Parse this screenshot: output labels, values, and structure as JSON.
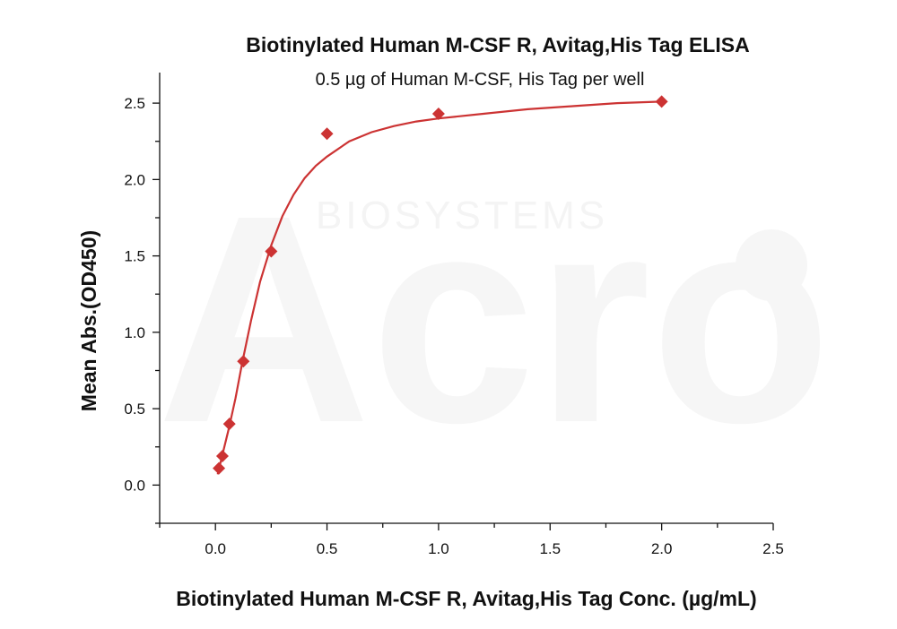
{
  "chart_data": {
    "type": "scatter",
    "title": "Biotinylated Human M-CSF R, Avitag,His Tag ELISA",
    "subtitle": "0.5 µg of Human M-CSF, His Tag per well",
    "xlabel": "Biotinylated Human M-CSF R, Avitag,His Tag Conc. (µg/mL)",
    "ylabel": "Mean Abs.(OD450)",
    "xlim": [
      -0.25,
      2.5
    ],
    "ylim": [
      -0.25,
      2.7
    ],
    "xticks": [
      "0.0",
      "0.5",
      "1.0",
      "1.5",
      "2.0",
      "2.5"
    ],
    "yticks": [
      "0.0",
      "0.5",
      "1.0",
      "1.5",
      "2.0",
      "2.5"
    ],
    "grid": false,
    "marker": "diamond",
    "color": "#cc3333",
    "points": [
      {
        "x": 0.0156,
        "y": 0.11
      },
      {
        "x": 0.0313,
        "y": 0.19
      },
      {
        "x": 0.0625,
        "y": 0.4
      },
      {
        "x": 0.125,
        "y": 0.81
      },
      {
        "x": 0.25,
        "y": 1.53
      },
      {
        "x": 0.5,
        "y": 2.3
      },
      {
        "x": 1.0,
        "y": 2.43
      },
      {
        "x": 2.0,
        "y": 2.51
      }
    ],
    "fit_curve": [
      {
        "x": 0.01,
        "y": 0.07
      },
      {
        "x": 0.03,
        "y": 0.19
      },
      {
        "x": 0.06,
        "y": 0.37
      },
      {
        "x": 0.09,
        "y": 0.57
      },
      {
        "x": 0.12,
        "y": 0.8
      },
      {
        "x": 0.16,
        "y": 1.08
      },
      {
        "x": 0.2,
        "y": 1.33
      },
      {
        "x": 0.25,
        "y": 1.57
      },
      {
        "x": 0.3,
        "y": 1.76
      },
      {
        "x": 0.35,
        "y": 1.9
      },
      {
        "x": 0.4,
        "y": 2.01
      },
      {
        "x": 0.45,
        "y": 2.09
      },
      {
        "x": 0.5,
        "y": 2.15
      },
      {
        "x": 0.6,
        "y": 2.25
      },
      {
        "x": 0.7,
        "y": 2.31
      },
      {
        "x": 0.8,
        "y": 2.35
      },
      {
        "x": 0.9,
        "y": 2.38
      },
      {
        "x": 1.0,
        "y": 2.4
      },
      {
        "x": 1.2,
        "y": 2.43
      },
      {
        "x": 1.4,
        "y": 2.46
      },
      {
        "x": 1.6,
        "y": 2.48
      },
      {
        "x": 1.8,
        "y": 2.5
      },
      {
        "x": 2.0,
        "y": 2.51
      }
    ]
  },
  "watermark": {
    "brand": "Acro",
    "tagline": "BIOSYSTEMS"
  }
}
